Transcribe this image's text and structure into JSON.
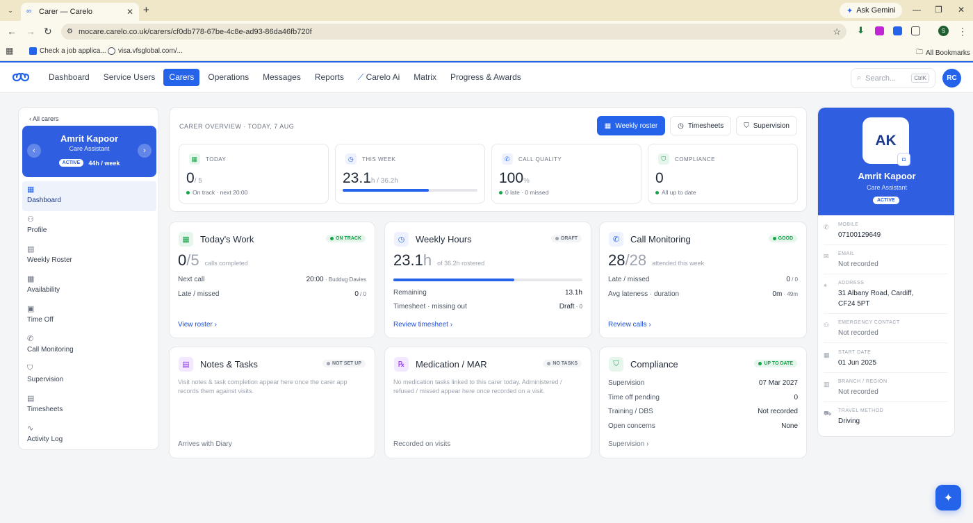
{
  "browser": {
    "tab_title": "Carer — Carelo",
    "ask_gemini": "Ask Gemini",
    "url": "mocare.carelo.co.uk/carers/cf0db778-67be-4c8e-ad93-86da46fb720f",
    "bookmarks": [
      "Check a job applica...",
      "visa.vfsglobal.com/..."
    ],
    "all_bookmarks": "All Bookmarks",
    "profile_initial": "S"
  },
  "nav": {
    "items": [
      "Dashboard",
      "Service Users",
      "Carers",
      "Operations",
      "Messages",
      "Reports",
      "Carelo Ai",
      "Matrix",
      "Progress & Awards"
    ],
    "active": "Carers",
    "search_placeholder": "Search...",
    "search_shortcut": "CtrlK",
    "user_initials": "RC"
  },
  "sidebar": {
    "back": "‹ All carers",
    "name": "Amrit Kapoor",
    "role": "Care Assistant",
    "status": "ACTIVE",
    "hours": "44h / week",
    "items": [
      "Dashboard",
      "Profile",
      "Weekly Roster",
      "Availability",
      "Time Off",
      "Call Monitoring",
      "Supervision",
      "Timesheets",
      "Activity Log"
    ],
    "active": "Dashboard"
  },
  "overview": {
    "title": "CARER OVERVIEW · TODAY, 7 AUG",
    "buttons": [
      "Weekly roster",
      "Timesheets",
      "Supervision"
    ],
    "stats": [
      {
        "label": "TODAY",
        "value": "0",
        "suffix": "/ 5",
        "sub": "On track · next 20:00"
      },
      {
        "label": "THIS WEEK",
        "value": "23.1",
        "suffix": "h / 36.2h",
        "progress": 0.64
      },
      {
        "label": "CALL QUALITY",
        "value": "100",
        "suffix": "%",
        "sub": "0 late · 0 missed"
      },
      {
        "label": "COMPLIANCE",
        "value": "0",
        "suffix": "",
        "sub": "All up to date"
      }
    ]
  },
  "todays_work": {
    "title": "Today's Work",
    "badge": "ON TRACK",
    "value": "0",
    "of": "/5",
    "caption": "calls completed",
    "rows": [
      {
        "label": "Next call",
        "value": "20:00",
        "extra": " · Buddug Davies"
      },
      {
        "label": "Late / missed",
        "value": "0",
        "extra": " / 0"
      }
    ],
    "link": "View roster ›"
  },
  "weekly_hours": {
    "title": "Weekly Hours",
    "badge": "DRAFT",
    "value": "23.1",
    "unit": "h",
    "caption": "of 36.2h rostered",
    "progress": 0.64,
    "rows": [
      {
        "label": "Remaining",
        "value": "13.1h",
        "extra": ""
      },
      {
        "label": "Timesheet · missing out",
        "value": "Draft",
        "extra": " · 0"
      }
    ],
    "link": "Review timesheet ›"
  },
  "call_monitoring": {
    "title": "Call Monitoring",
    "badge": "GOOD",
    "value": "28",
    "of": "/28",
    "caption": "attended this week",
    "rows": [
      {
        "label": "Late / missed",
        "value": "0",
        "extra": " / 0"
      },
      {
        "label": "Avg lateness · duration",
        "value": "0m",
        "extra": " · 49m"
      }
    ],
    "link": "Review calls ›"
  },
  "notes_tasks": {
    "title": "Notes & Tasks",
    "badge": "NOT SET UP",
    "desc": "Visit notes & task completion appear here once the carer app records them against visits.",
    "footer": "Arrives with Diary"
  },
  "medication": {
    "title": "Medication / MAR",
    "badge": "NO TASKS",
    "desc": "No medication tasks linked to this carer today. Administered / refused / missed appear here once recorded on a visit.",
    "footer": "Recorded on visits"
  },
  "compliance": {
    "title": "Compliance",
    "badge": "UP TO DATE",
    "rows": [
      {
        "label": "Supervision",
        "value": "07 Mar 2027"
      },
      {
        "label": "Time off pending",
        "value": "0"
      },
      {
        "label": "Training / DBS",
        "value": "Not recorded"
      },
      {
        "label": "Open concerns",
        "value": "None"
      }
    ],
    "link": "Supervision ›"
  },
  "profile_card": {
    "initials": "AK",
    "name": "Amrit Kapoor",
    "role": "Care Assistant",
    "status": "ACTIVE",
    "fields": [
      {
        "label": "MOBILE",
        "value": "07100129649"
      },
      {
        "label": "EMAIL",
        "value": "Not recorded"
      },
      {
        "label": "ADDRESS",
        "value": "31 Albany Road, Cardiff, CF24 5PT"
      },
      {
        "label": "EMERGENCY CONTACT",
        "value": "Not recorded"
      },
      {
        "label": "START DATE",
        "value": "01 Jun 2025"
      },
      {
        "label": "BRANCH / REGION",
        "value": "Not recorded"
      },
      {
        "label": "TRAVEL METHOD",
        "value": "Driving"
      }
    ]
  },
  "colors": {
    "accent": "#2563eb",
    "success": "#16a34a",
    "browser_bar": "#efe7c8"
  }
}
